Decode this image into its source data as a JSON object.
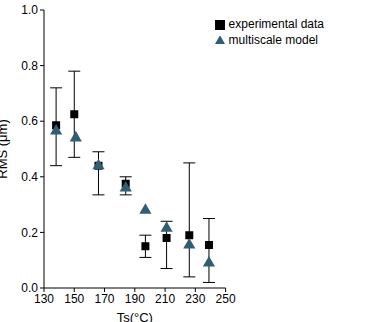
{
  "chart_data": {
    "type": "scatter",
    "x_label": "Ts(°C)",
    "y_label": "RMS (μm)",
    "xlim": [
      130,
      250
    ],
    "xticks": [
      130,
      150,
      170,
      190,
      210,
      230,
      250
    ],
    "ylim": [
      0,
      1
    ],
    "yticks": [
      {
        "value": 0,
        "label": "0.0"
      },
      0.2,
      0.4,
      0.6,
      0.8,
      {
        "value": 1,
        "label": "1.0"
      }
    ],
    "legend": "upper right",
    "grid": false,
    "series": [
      {
        "name": "experimental data",
        "color": "#000000",
        "marker": "square",
        "x": [
          138,
          150,
          166,
          184,
          197,
          211,
          226,
          239
        ],
        "values": [
          0.585,
          0.625,
          0.44,
          0.375,
          0.15,
          0.18,
          0.19,
          0.155
        ],
        "errors": [
          [
            0.145,
            0.135
          ],
          [
            0.155,
            0.155
          ],
          [
            0.105,
            0.05
          ],
          [
            0.04,
            0.025
          ],
          [
            0.04,
            0.04
          ],
          [
            0.11,
            0.06
          ],
          [
            0.15,
            0.26
          ],
          [
            0.135,
            0.095
          ]
        ]
      },
      {
        "name": "multiscale model",
        "color": "#2e5f73",
        "marker": "triangle",
        "x": [
          138,
          151,
          166,
          184,
          197,
          211,
          226,
          239
        ],
        "values": [
          0.565,
          0.54,
          0.44,
          0.36,
          0.28,
          0.215,
          0.155,
          0.09
        ]
      }
    ]
  }
}
